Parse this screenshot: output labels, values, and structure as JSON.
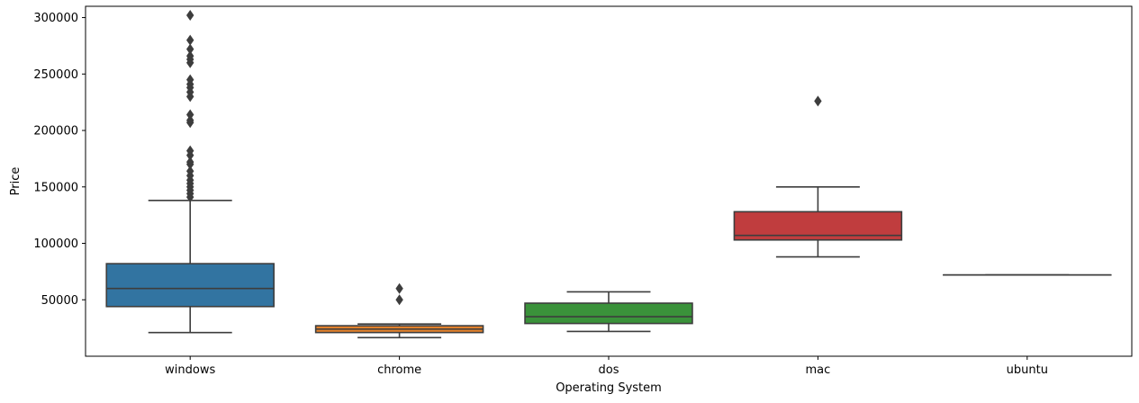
{
  "chart_data": {
    "type": "boxplot",
    "title": "",
    "xlabel": "Operating System",
    "ylabel": "Price",
    "ylim": [
      0,
      310000
    ],
    "yticks": [
      50000,
      100000,
      150000,
      200000,
      250000,
      300000
    ],
    "ytick_labels": [
      "50000",
      "100000",
      "150000",
      "200000",
      "250000",
      "300000"
    ],
    "grid": false,
    "categories": [
      "windows",
      "chrome",
      "dos",
      "mac",
      "ubuntu"
    ],
    "boxes": [
      {
        "category": "windows",
        "color": "#3274a1",
        "whisker_low": 21000,
        "q1": 44000,
        "median": 60000,
        "q3": 82000,
        "whisker_high": 138000,
        "outliers": [
          141000,
          144000,
          147000,
          150000,
          153000,
          156000,
          160000,
          164000,
          170000,
          172000,
          178000,
          182000,
          207000,
          209000,
          214000,
          230000,
          234000,
          238000,
          241000,
          245000,
          260000,
          263000,
          266000,
          272000,
          280000,
          302000
        ]
      },
      {
        "category": "chrome",
        "color": "#e1812c",
        "whisker_low": 16500,
        "q1": 21000,
        "median": 24000,
        "q3": 27000,
        "whisker_high": 28500,
        "outliers": [
          50000,
          60000
        ]
      },
      {
        "category": "dos",
        "color": "#3a923a",
        "whisker_low": 22000,
        "q1": 29000,
        "median": 35000,
        "q3": 47000,
        "whisker_high": 57000,
        "outliers": []
      },
      {
        "category": "mac",
        "color": "#c03d3e",
        "whisker_low": 88000,
        "q1": 103000,
        "median": 107000,
        "q3": 128000,
        "whisker_high": 150000,
        "outliers": [
          226000
        ]
      },
      {
        "category": "ubuntu",
        "color": "#9372b2",
        "whisker_low": 72000,
        "q1": 72000,
        "median": 72000,
        "q3": 72000,
        "whisker_high": 72000,
        "outliers": []
      }
    ]
  }
}
